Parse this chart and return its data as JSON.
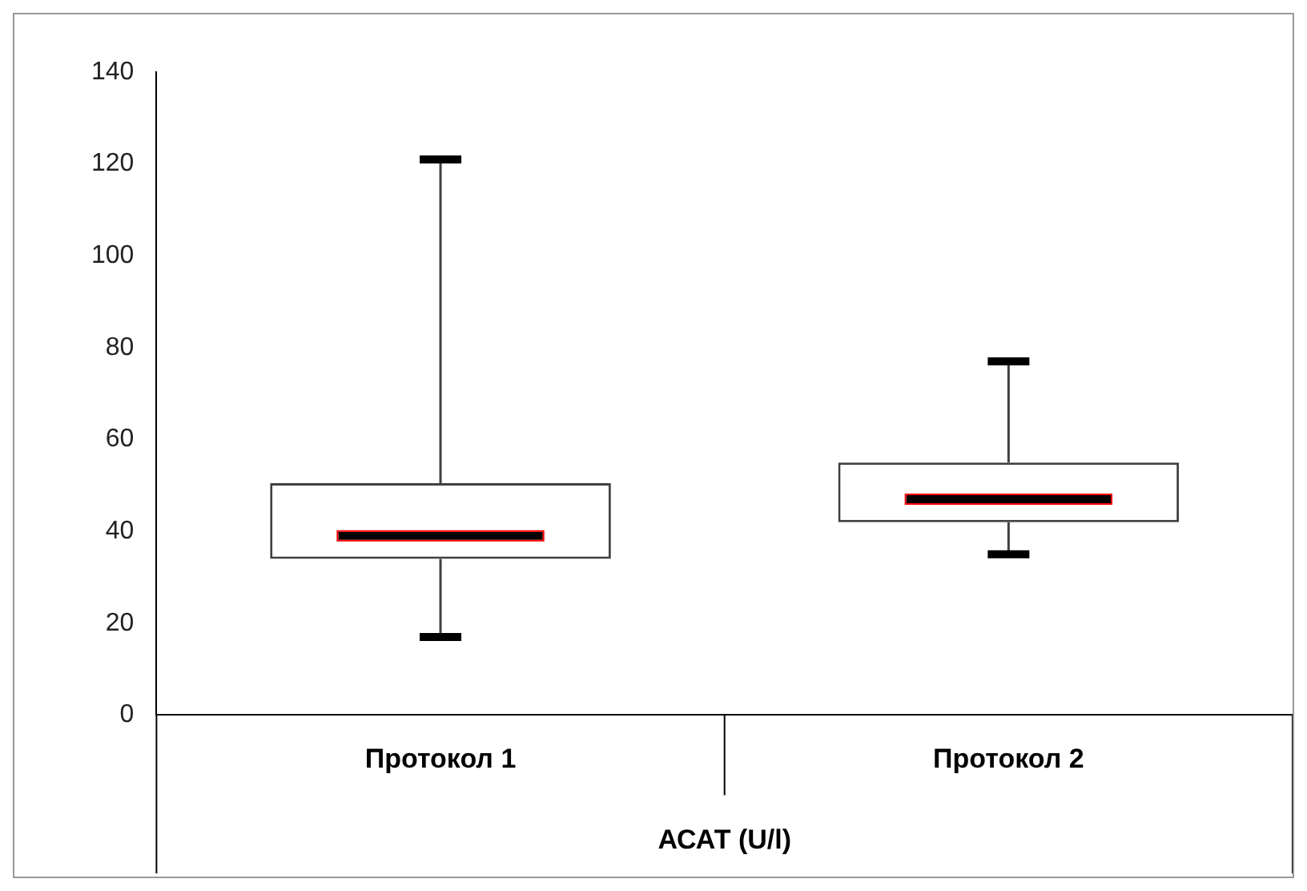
{
  "chart_data": {
    "type": "box",
    "xlabel": "АСАТ (U/l)",
    "categories": [
      "Протокол 1",
      "Протокол 2"
    ],
    "boxes": [
      {
        "low": 17,
        "q1": 34,
        "median": 39,
        "q3": 50.5,
        "high": 121
      },
      {
        "low": 35,
        "q1": 42,
        "median": 47,
        "q3": 55,
        "high": 77
      }
    ],
    "ylim": [
      0,
      140
    ],
    "yticks": [
      0,
      20,
      40,
      60,
      80,
      100,
      120,
      140
    ],
    "grid": false,
    "legend": false
  }
}
